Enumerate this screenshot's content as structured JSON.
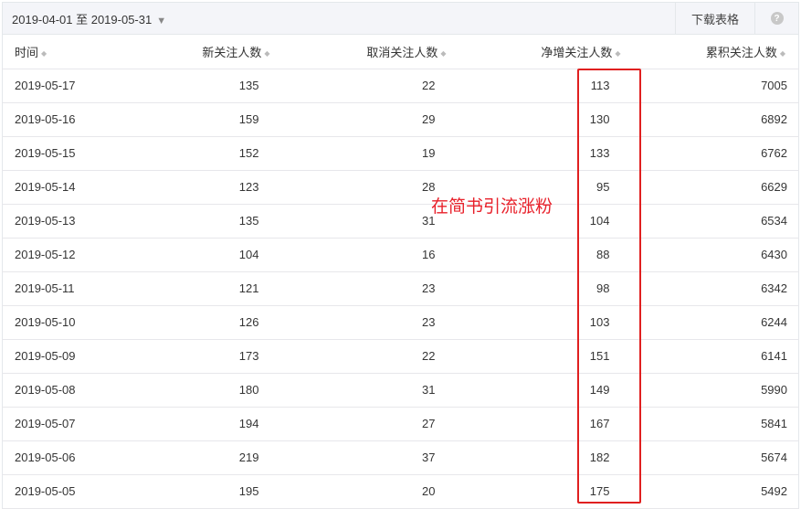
{
  "toolbar": {
    "date_range": "2019-04-01 至 2019-05-31",
    "download_label": "下载表格",
    "help_icon": "question-circle-icon"
  },
  "table": {
    "headers": [
      "时间",
      "新关注人数",
      "取消关注人数",
      "净增关注人数",
      "累积关注人数"
    ],
    "rows": [
      [
        "2019-05-17",
        "135",
        "22",
        "113",
        "7005"
      ],
      [
        "2019-05-16",
        "159",
        "29",
        "130",
        "6892"
      ],
      [
        "2019-05-15",
        "152",
        "19",
        "133",
        "6762"
      ],
      [
        "2019-05-14",
        "123",
        "28",
        "95",
        "6629"
      ],
      [
        "2019-05-13",
        "135",
        "31",
        "104",
        "6534"
      ],
      [
        "2019-05-12",
        "104",
        "16",
        "88",
        "6430"
      ],
      [
        "2019-05-11",
        "121",
        "23",
        "98",
        "6342"
      ],
      [
        "2019-05-10",
        "126",
        "23",
        "103",
        "6244"
      ],
      [
        "2019-05-09",
        "173",
        "22",
        "151",
        "6141"
      ],
      [
        "2019-05-08",
        "180",
        "31",
        "149",
        "5990"
      ],
      [
        "2019-05-07",
        "194",
        "27",
        "167",
        "5841"
      ],
      [
        "2019-05-06",
        "219",
        "37",
        "182",
        "5674"
      ],
      [
        "2019-05-05",
        "195",
        "20",
        "175",
        "5492"
      ]
    ]
  },
  "annotation": {
    "text": "在简书引流涨粉",
    "color": "#e8202a"
  }
}
